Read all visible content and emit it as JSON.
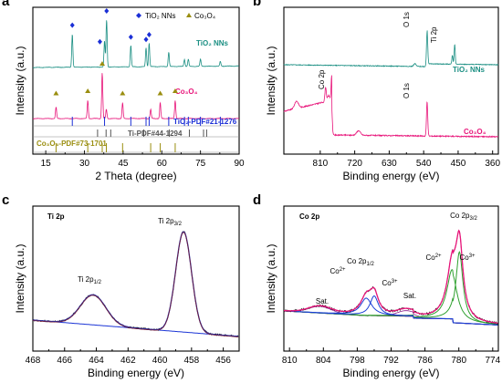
{
  "chart_data": [
    {
      "panel": "a",
      "type": "line",
      "xlabel": "2 Theta (degree)",
      "ylabel": "Intensity (a.u.)",
      "xlim": [
        10,
        90
      ],
      "xticks": [
        "15",
        "30",
        "45",
        "60",
        "75",
        "90"
      ],
      "xtick_values": [
        15,
        30,
        45,
        60,
        75,
        90
      ],
      "legend": [
        {
          "marker": "diamond",
          "label": "TiO₂ NNs",
          "color": "#1b2fd6"
        },
        {
          "marker": "triangle",
          "label": "Co₃O₄",
          "color": "#9a8e10"
        }
      ],
      "series": [
        {
          "name": "TiO₂ NNs",
          "color": "#1b8f83",
          "peaks": [
            [
              25.3,
              0.7
            ],
            [
              37.8,
              0.55
            ],
            [
              38.6,
              1.0
            ],
            [
              48.0,
              0.45
            ],
            [
              53.9,
              0.4
            ],
            [
              55.1,
              0.5
            ],
            [
              62.7,
              0.3
            ],
            [
              68.8,
              0.15
            ],
            [
              70.3,
              0.15
            ],
            [
              75.0,
              0.15
            ],
            [
              82.7,
              0.1
            ]
          ],
          "diamond_markers": [
            25.3,
            36.0,
            38.6,
            48.0,
            53.9,
            55.1
          ]
        },
        {
          "name": "Co₃O₄",
          "color": "#e8157a",
          "peaks": [
            [
              19.0,
              0.25
            ],
            [
              31.3,
              0.4
            ],
            [
              36.9,
              1.0
            ],
            [
              38.5,
              0.2
            ],
            [
              44.8,
              0.35
            ],
            [
              55.7,
              0.2
            ],
            [
              59.4,
              0.35
            ],
            [
              65.2,
              0.4
            ]
          ],
          "triangle_markers": [
            19.0,
            31.3,
            36.9,
            44.8,
            59.4,
            65.2
          ]
        }
      ],
      "references": [
        {
          "label": "TiO₂-PDF#21-1276",
          "color": "#1b2fd6",
          "lines": [
            25.3,
            37.8,
            48.0,
            53.9,
            55.1,
            62.7,
            68.8,
            70.3,
            75.0,
            82.7
          ]
        },
        {
          "label": "Ti-PDF#44-1294",
          "color": "#555555",
          "lines": [
            35.1,
            38.4,
            40.2,
            53.0,
            62.9,
            70.7,
            76.2,
            77.4
          ]
        },
        {
          "label": "Co₃O₄-PDF#73-1701",
          "color": "#9a8e10",
          "lines": [
            19.0,
            31.3,
            36.9,
            38.5,
            44.8,
            55.7,
            59.4,
            65.2
          ]
        }
      ]
    },
    {
      "panel": "b",
      "type": "line",
      "xlabel": "Binding energy (eV)",
      "ylabel": "Intensity (a.u.)",
      "xlim": [
        905,
        345
      ],
      "xticks": [
        "810",
        "720",
        "630",
        "540",
        "450",
        "360"
      ],
      "xtick_values": [
        810,
        720,
        630,
        540,
        450,
        360
      ],
      "series": [
        {
          "name": "TiO₂ NNs",
          "color": "#1b8f83",
          "peaks": [
            [
              531,
              1.0
            ],
            [
              459,
              0.6
            ]
          ]
        },
        {
          "name": "Co₃O₄",
          "color": "#e8157a",
          "peaks": [
            [
              780,
              1.0
            ],
            [
              796,
              0.55
            ],
            [
              531,
              0.9
            ]
          ]
        }
      ],
      "annotations": [
        "O 1s",
        "Ti 2p",
        "Co 2p",
        "O 1s"
      ]
    },
    {
      "panel": "c",
      "type": "line",
      "title": "Ti 2p",
      "xlabel": "Binding energy (eV)",
      "ylabel": "Intensity (a.u.)",
      "xlim": [
        468,
        455
      ],
      "xticks": [
        "468",
        "466",
        "464",
        "462",
        "460",
        "458",
        "456"
      ],
      "xtick_values": [
        468,
        466,
        464,
        462,
        460,
        458,
        456
      ],
      "peaks": [
        {
          "label": "Ti 2p",
          "sub": "1/2",
          "center": 464.2,
          "height": 0.3
        },
        {
          "label": "Ti 2p",
          "sub": "3/2",
          "center": 458.5,
          "height": 1.0
        }
      ],
      "colors": {
        "raw": "#222222",
        "fit": "#2a2a9a",
        "background": "#1b35d6",
        "envelope": "#7a1a30"
      }
    },
    {
      "panel": "d",
      "type": "line",
      "title": "Co 2p",
      "xlabel": "Binding energy (eV)",
      "ylabel": "Intensity (a.u.)",
      "xlim": [
        811,
        773
      ],
      "xticks": [
        "810",
        "804",
        "798",
        "792",
        "786",
        "780",
        "774"
      ],
      "xtick_values": [
        810,
        804,
        798,
        792,
        786,
        780,
        774
      ],
      "peaks": [
        {
          "label": "Co 2p",
          "sub": "3/2",
          "center": 780.0,
          "height": 1.0
        },
        {
          "label": "Co 2p",
          "sub": "1/2",
          "center": 795.2,
          "height": 0.45
        }
      ],
      "annotations": [
        {
          "text": "Sat.",
          "x": 804.5
        },
        {
          "text": "Co",
          "sup": "2+",
          "x": 797.3
        },
        {
          "text": "Co",
          "sup": "3+",
          "x": 793.5
        },
        {
          "text": "Sat.",
          "x": 789.0
        },
        {
          "text": "Co",
          "sup": "2+",
          "x": 782.7
        },
        {
          "text": "Co",
          "sup": "3+",
          "x": 777.7
        }
      ],
      "colors": {
        "raw": "#111111",
        "envelope": "#e8157a",
        "co3": "#2ea02e",
        "co2": "#1b3fd6",
        "sat": "#8a1a8a",
        "background": "#111111"
      }
    }
  ]
}
